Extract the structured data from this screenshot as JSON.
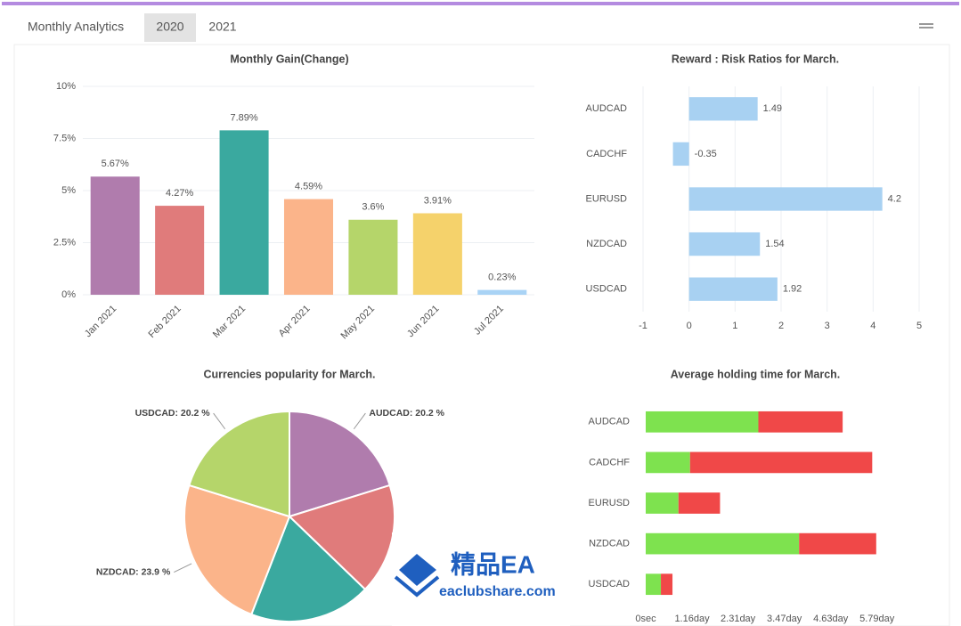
{
  "header": {
    "title": "Monthly Analytics",
    "tabs": [
      "2020",
      "2021"
    ]
  },
  "chart_data": [
    {
      "type": "bar",
      "title": "Monthly Gain(Change)",
      "categories": [
        "Jan 2021",
        "Feb 2021",
        "Mar 2021",
        "Apr 2021",
        "May 2021",
        "Jun 2021",
        "Jul 2021"
      ],
      "values": [
        5.67,
        4.27,
        7.89,
        4.59,
        3.6,
        3.91,
        0.23
      ],
      "value_labels": [
        "5.67%",
        "4.27%",
        "7.89%",
        "4.59%",
        "3.6%",
        "3.91%",
        "0.23%"
      ],
      "colors": [
        "#b07cad",
        "#e07b7b",
        "#3aa99f",
        "#fbb48a",
        "#b5d56a",
        "#f5d26b",
        "#a9d3f5"
      ],
      "ylim": [
        0,
        10
      ],
      "yticks": [
        {
          "value": 0,
          "label": "0%"
        },
        {
          "value": 2.5,
          "label": "2.5%"
        },
        {
          "value": 5,
          "label": "5%"
        },
        {
          "value": 7.5,
          "label": "7.5%"
        },
        {
          "value": 10,
          "label": "10%"
        }
      ],
      "grid": true
    },
    {
      "type": "hbar",
      "title": "Reward : Risk Ratios for March.",
      "categories": [
        "AUDCAD",
        "CADCHF",
        "EURUSD",
        "NZDCAD",
        "USDCAD"
      ],
      "values": [
        1.49,
        -0.35,
        4.2,
        1.54,
        1.92
      ],
      "color": "#a8d1f2",
      "xlim": [
        -1,
        5
      ],
      "xticks": [
        -1,
        0,
        1,
        2,
        3,
        4,
        5
      ],
      "grid": true
    },
    {
      "type": "pie",
      "title": "Currencies popularity for March.",
      "values": [
        20.2,
        17,
        18.7,
        23.9,
        20.2
      ],
      "value_labels": [
        "AUDCAD: 20.2 %",
        null,
        null,
        "NZDCAD: 23.9 %",
        "USDCAD: 20.2 %"
      ],
      "colors": [
        "#b07cad",
        "#e07b7b",
        "#3aa99f",
        "#fbb48a",
        "#b5d56a"
      ]
    },
    {
      "type": "hbar",
      "stacked": true,
      "title": "Average holding time for March.",
      "categories": [
        "AUDCAD",
        "CADCHF",
        "EURUSD",
        "NZDCAD",
        "USDCAD"
      ],
      "series": [
        {
          "color": "#7ee24f",
          "values": [
            2.82,
            1.11,
            0.82,
            3.84,
            0.38
          ]
        },
        {
          "color": "#f04848",
          "values": [
            2.11,
            4.56,
            1.04,
            1.93,
            0.29
          ]
        }
      ],
      "xlim": [
        0,
        6.8
      ],
      "xticks": [
        {
          "value": 0,
          "label": "0sec"
        },
        {
          "value": 1.16,
          "label": "1.16day"
        },
        {
          "value": 2.31,
          "label": "2.31day"
        },
        {
          "value": 3.47,
          "label": "3.47day"
        },
        {
          "value": 4.63,
          "label": "4.63day"
        },
        {
          "value": 5.79,
          "label": "5.79day"
        }
      ],
      "grid": false
    }
  ],
  "watermark": {
    "title": "精品EA",
    "url": "eaclubshare.com"
  }
}
